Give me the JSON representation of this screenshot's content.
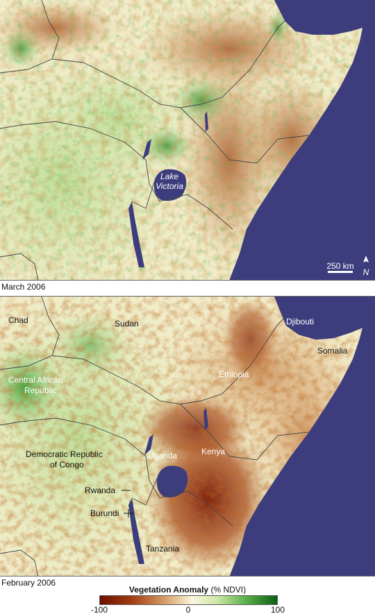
{
  "colors": {
    "ocean": "#3d3d7e",
    "lake": "#3d3d7e",
    "neutral": "#f6efcf",
    "brown": "#8a2a08",
    "dark_green": "#0b5f14"
  },
  "panels": {
    "top": {
      "caption": "March 2006",
      "lake_label_line1": "Lake",
      "lake_label_line2": "Victoria",
      "scale_label": "250 km",
      "north_label": "N"
    },
    "bottom": {
      "caption": "February 2006",
      "labels": {
        "chad": "Chad",
        "sudan": "Sudan",
        "djibouti": "Djibouti",
        "somalia": "Somalia",
        "car_line1": "Central African",
        "car_line2": "Republic",
        "ethiopia": "Ethiopia",
        "drc_line1": "Democratic Republic",
        "drc_line2": "of Congo",
        "uganda": "Uganda",
        "kenya": "Kenya",
        "rwanda": "Rwanda",
        "burundi": "Burundi",
        "tanzania": "Tanzania"
      }
    }
  },
  "legend": {
    "title_bold": "Vegetation Anomaly",
    "title_unit": "(% NDVI)",
    "min": "-100",
    "mid": "0",
    "max": "100"
  }
}
